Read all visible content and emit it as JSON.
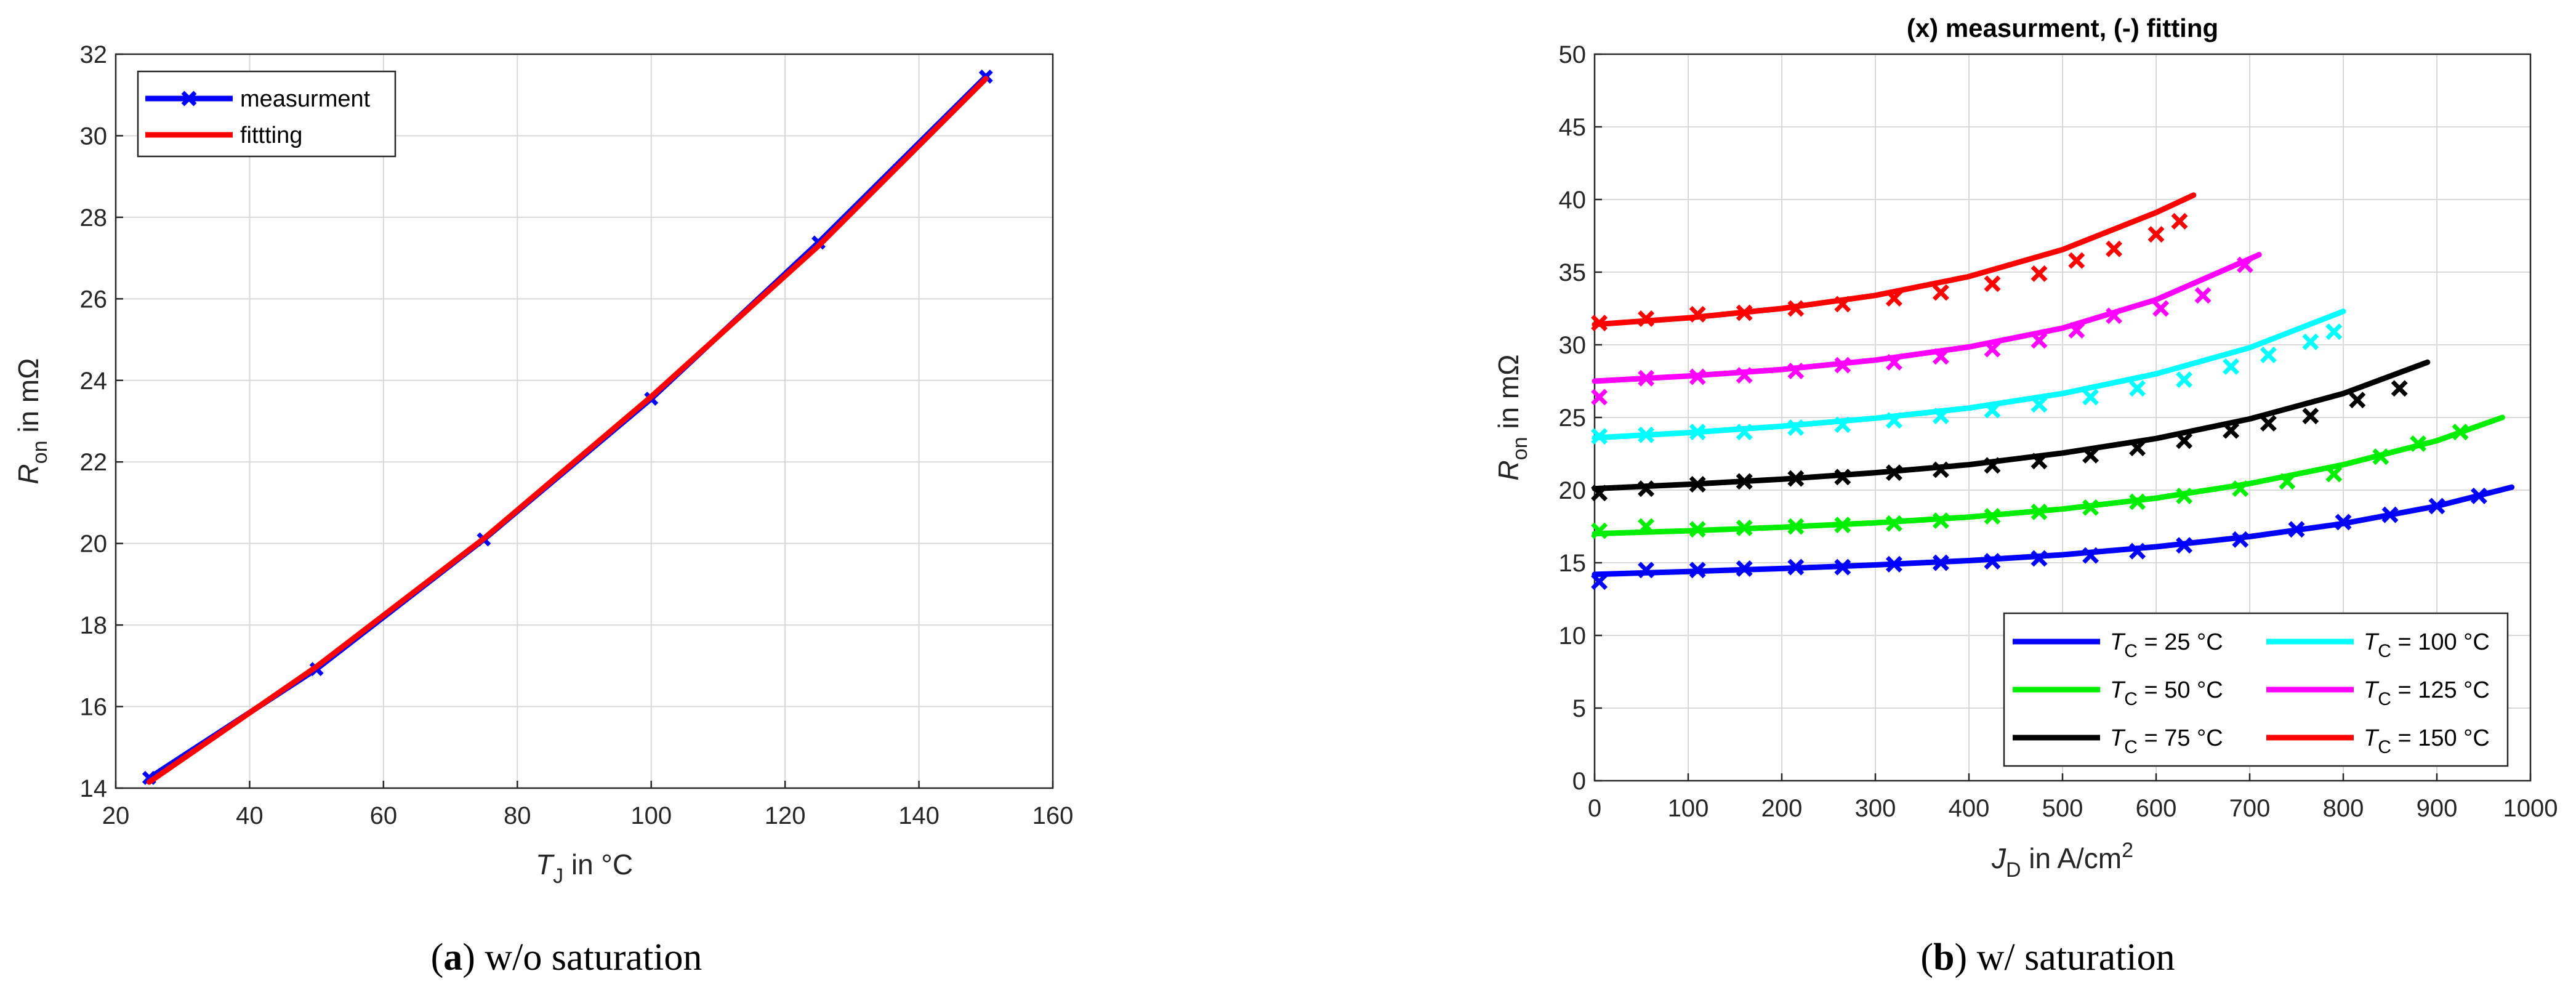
{
  "chart_data": [
    {
      "type": "line",
      "caption_letter": "a",
      "caption_rest": " w/o saturation",
      "xlabel_main": "T",
      "xlabel_sub": "J",
      "xlabel_rest": " in °C",
      "ylabel_main": "R",
      "ylabel_sub": "on",
      "ylabel_rest": " in mΩ",
      "xlim": [
        20,
        160
      ],
      "ylim": [
        14,
        32
      ],
      "xticks": [
        20,
        40,
        60,
        80,
        100,
        120,
        140,
        160
      ],
      "yticks": [
        14,
        16,
        18,
        20,
        22,
        24,
        26,
        28,
        30,
        32
      ],
      "grid": true,
      "legend_position": "top-left",
      "series": [
        {
          "name": "measurment",
          "color": "#0000ff",
          "style": "line-with-x-markers",
          "x": [
            25,
            50,
            75,
            100,
            125,
            150
          ],
          "y": [
            14.25,
            16.92,
            20.1,
            23.55,
            27.38,
            31.45
          ]
        },
        {
          "name": "fittting",
          "color": "#ff0000",
          "style": "line",
          "x": [
            25,
            50,
            75,
            100,
            125,
            150
          ],
          "y": [
            14.15,
            16.98,
            20.12,
            23.6,
            27.3,
            31.4
          ]
        }
      ]
    },
    {
      "type": "line",
      "title": "(x) measurment, (-) fitting",
      "caption_letter": "b",
      "caption_rest": " w/ saturation",
      "xlabel_main": "J",
      "xlabel_sub": "D",
      "xlabel_rest": " in A/cm",
      "xlabel_sup": "2",
      "ylabel_main": "R",
      "ylabel_sub": "on",
      "ylabel_rest": " in mΩ",
      "xlim": [
        0,
        1000
      ],
      "ylim": [
        0,
        50
      ],
      "xticks": [
        0,
        100,
        200,
        300,
        400,
        500,
        600,
        700,
        800,
        900,
        1000
      ],
      "yticks": [
        0,
        5,
        10,
        15,
        20,
        25,
        30,
        35,
        40,
        45,
        50
      ],
      "grid": true,
      "legend_position": "bottom-right",
      "series": [
        {
          "name_main": "T",
          "name_sub": "C",
          "name_rest": " = 25 °C",
          "color": "#0000ff",
          "fit_x": [
            0,
            100,
            200,
            300,
            400,
            500,
            600,
            700,
            800,
            900,
            980
          ],
          "fit_y": [
            14.2,
            14.4,
            14.6,
            14.85,
            15.15,
            15.55,
            16.1,
            16.8,
            17.7,
            18.9,
            20.2
          ],
          "meas_x": [
            5,
            55,
            110,
            160,
            215,
            265,
            320,
            370,
            425,
            475,
            530,
            580,
            630,
            690,
            750,
            800,
            850,
            900,
            945
          ],
          "meas_y": [
            13.7,
            14.5,
            14.5,
            14.6,
            14.7,
            14.7,
            14.9,
            15.0,
            15.1,
            15.3,
            15.5,
            15.8,
            16.2,
            16.6,
            17.3,
            17.8,
            18.3,
            18.9,
            19.6
          ]
        },
        {
          "name_main": "T",
          "name_sub": "C",
          "name_rest": " = 50 °C",
          "color": "#00ee00",
          "fit_x": [
            0,
            100,
            200,
            300,
            400,
            500,
            600,
            700,
            800,
            900,
            970
          ],
          "fit_y": [
            17.0,
            17.2,
            17.45,
            17.75,
            18.15,
            18.7,
            19.45,
            20.45,
            21.75,
            23.4,
            25.0
          ],
          "meas_x": [
            5,
            55,
            110,
            160,
            215,
            265,
            320,
            370,
            425,
            475,
            530,
            580,
            630,
            690,
            740,
            790,
            840,
            880,
            925
          ],
          "meas_y": [
            17.2,
            17.5,
            17.3,
            17.4,
            17.5,
            17.6,
            17.7,
            17.9,
            18.2,
            18.5,
            18.8,
            19.2,
            19.6,
            20.1,
            20.6,
            21.1,
            22.3,
            23.2,
            24.0
          ]
        },
        {
          "name_main": "T",
          "name_sub": "C",
          "name_rest": " = 75 °C",
          "color": "#000000",
          "fit_x": [
            0,
            100,
            200,
            300,
            400,
            500,
            600,
            700,
            800,
            890
          ],
          "fit_y": [
            20.1,
            20.4,
            20.75,
            21.2,
            21.75,
            22.55,
            23.55,
            24.9,
            26.65,
            28.8
          ],
          "meas_x": [
            5,
            55,
            110,
            160,
            215,
            265,
            320,
            370,
            425,
            475,
            530,
            580,
            630,
            680,
            720,
            765,
            815,
            860
          ],
          "meas_y": [
            19.8,
            20.1,
            20.4,
            20.6,
            20.8,
            20.9,
            21.2,
            21.4,
            21.7,
            22.0,
            22.4,
            22.9,
            23.4,
            24.1,
            24.6,
            25.1,
            26.2,
            27.0
          ]
        },
        {
          "name_main": "T",
          "name_sub": "C",
          "name_rest": " = 100 °C",
          "color": "#00ffff",
          "fit_x": [
            0,
            100,
            200,
            300,
            400,
            500,
            600,
            700,
            800
          ],
          "fit_y": [
            23.6,
            23.95,
            24.4,
            24.95,
            25.65,
            26.65,
            28.0,
            29.8,
            32.3
          ],
          "meas_x": [
            5,
            55,
            110,
            160,
            215,
            265,
            320,
            370,
            425,
            475,
            530,
            580,
            630,
            680,
            720,
            765,
            790
          ],
          "meas_y": [
            23.7,
            23.8,
            24.0,
            24.0,
            24.3,
            24.5,
            24.8,
            25.1,
            25.5,
            25.9,
            26.4,
            27.0,
            27.6,
            28.5,
            29.3,
            30.2,
            30.9
          ]
        },
        {
          "name_main": "T",
          "name_sub": "C",
          "name_rest": " = 125 °C",
          "color": "#ff00ff",
          "fit_x": [
            0,
            100,
            200,
            300,
            400,
            500,
            600,
            710
          ],
          "fit_y": [
            27.5,
            27.85,
            28.3,
            28.95,
            29.85,
            31.15,
            33.1,
            36.2
          ],
          "meas_x": [
            5,
            55,
            110,
            160,
            215,
            265,
            320,
            370,
            425,
            475,
            515,
            555,
            605,
            650,
            695
          ],
          "meas_y": [
            26.4,
            27.7,
            27.8,
            27.9,
            28.2,
            28.6,
            28.8,
            29.2,
            29.7,
            30.3,
            31.0,
            32.0,
            32.5,
            33.4,
            35.5
          ]
        },
        {
          "name_main": "T",
          "name_sub": "C",
          "name_rest": " = 150 °C",
          "color": "#ff0000",
          "fit_x": [
            0,
            100,
            200,
            300,
            400,
            500,
            600,
            640
          ],
          "fit_y": [
            31.4,
            31.85,
            32.5,
            33.4,
            34.7,
            36.55,
            39.1,
            40.3
          ],
          "meas_x": [
            5,
            55,
            110,
            160,
            215,
            265,
            320,
            370,
            425,
            475,
            515,
            555,
            600,
            625
          ],
          "meas_y": [
            31.5,
            31.8,
            32.1,
            32.2,
            32.5,
            32.8,
            33.2,
            33.6,
            34.2,
            34.9,
            35.8,
            36.6,
            37.6,
            38.5
          ]
        }
      ]
    }
  ]
}
